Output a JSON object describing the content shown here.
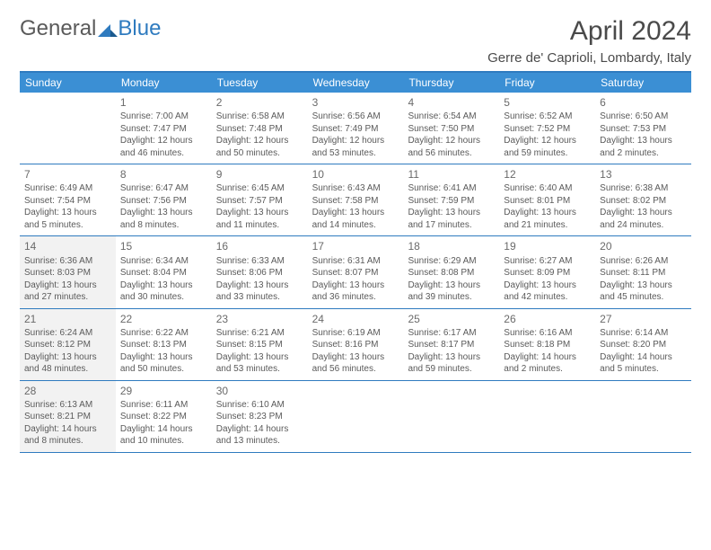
{
  "logo": {
    "general": "General",
    "blue": "Blue"
  },
  "header": {
    "month_title": "April 2024",
    "location": "Gerre de' Caprioli, Lombardy, Italy"
  },
  "colors": {
    "header_bar": "#3b8fd4",
    "border": "#2f7bbf",
    "shaded_bg": "#f2f2f2",
    "text": "#5a5a5a"
  },
  "days_of_week": [
    "Sunday",
    "Monday",
    "Tuesday",
    "Wednesday",
    "Thursday",
    "Friday",
    "Saturday"
  ],
  "shaded_dates": [
    14,
    21,
    28
  ],
  "weeks": [
    [
      {
        "date": null
      },
      {
        "date": 1,
        "sunrise": "Sunrise: 7:00 AM",
        "sunset": "Sunset: 7:47 PM",
        "daylight1": "Daylight: 12 hours",
        "daylight2": "and 46 minutes."
      },
      {
        "date": 2,
        "sunrise": "Sunrise: 6:58 AM",
        "sunset": "Sunset: 7:48 PM",
        "daylight1": "Daylight: 12 hours",
        "daylight2": "and 50 minutes."
      },
      {
        "date": 3,
        "sunrise": "Sunrise: 6:56 AM",
        "sunset": "Sunset: 7:49 PM",
        "daylight1": "Daylight: 12 hours",
        "daylight2": "and 53 minutes."
      },
      {
        "date": 4,
        "sunrise": "Sunrise: 6:54 AM",
        "sunset": "Sunset: 7:50 PM",
        "daylight1": "Daylight: 12 hours",
        "daylight2": "and 56 minutes."
      },
      {
        "date": 5,
        "sunrise": "Sunrise: 6:52 AM",
        "sunset": "Sunset: 7:52 PM",
        "daylight1": "Daylight: 12 hours",
        "daylight2": "and 59 minutes."
      },
      {
        "date": 6,
        "sunrise": "Sunrise: 6:50 AM",
        "sunset": "Sunset: 7:53 PM",
        "daylight1": "Daylight: 13 hours",
        "daylight2": "and 2 minutes."
      }
    ],
    [
      {
        "date": 7,
        "sunrise": "Sunrise: 6:49 AM",
        "sunset": "Sunset: 7:54 PM",
        "daylight1": "Daylight: 13 hours",
        "daylight2": "and 5 minutes."
      },
      {
        "date": 8,
        "sunrise": "Sunrise: 6:47 AM",
        "sunset": "Sunset: 7:56 PM",
        "daylight1": "Daylight: 13 hours",
        "daylight2": "and 8 minutes."
      },
      {
        "date": 9,
        "sunrise": "Sunrise: 6:45 AM",
        "sunset": "Sunset: 7:57 PM",
        "daylight1": "Daylight: 13 hours",
        "daylight2": "and 11 minutes."
      },
      {
        "date": 10,
        "sunrise": "Sunrise: 6:43 AM",
        "sunset": "Sunset: 7:58 PM",
        "daylight1": "Daylight: 13 hours",
        "daylight2": "and 14 minutes."
      },
      {
        "date": 11,
        "sunrise": "Sunrise: 6:41 AM",
        "sunset": "Sunset: 7:59 PM",
        "daylight1": "Daylight: 13 hours",
        "daylight2": "and 17 minutes."
      },
      {
        "date": 12,
        "sunrise": "Sunrise: 6:40 AM",
        "sunset": "Sunset: 8:01 PM",
        "daylight1": "Daylight: 13 hours",
        "daylight2": "and 21 minutes."
      },
      {
        "date": 13,
        "sunrise": "Sunrise: 6:38 AM",
        "sunset": "Sunset: 8:02 PM",
        "daylight1": "Daylight: 13 hours",
        "daylight2": "and 24 minutes."
      }
    ],
    [
      {
        "date": 14,
        "sunrise": "Sunrise: 6:36 AM",
        "sunset": "Sunset: 8:03 PM",
        "daylight1": "Daylight: 13 hours",
        "daylight2": "and 27 minutes."
      },
      {
        "date": 15,
        "sunrise": "Sunrise: 6:34 AM",
        "sunset": "Sunset: 8:04 PM",
        "daylight1": "Daylight: 13 hours",
        "daylight2": "and 30 minutes."
      },
      {
        "date": 16,
        "sunrise": "Sunrise: 6:33 AM",
        "sunset": "Sunset: 8:06 PM",
        "daylight1": "Daylight: 13 hours",
        "daylight2": "and 33 minutes."
      },
      {
        "date": 17,
        "sunrise": "Sunrise: 6:31 AM",
        "sunset": "Sunset: 8:07 PM",
        "daylight1": "Daylight: 13 hours",
        "daylight2": "and 36 minutes."
      },
      {
        "date": 18,
        "sunrise": "Sunrise: 6:29 AM",
        "sunset": "Sunset: 8:08 PM",
        "daylight1": "Daylight: 13 hours",
        "daylight2": "and 39 minutes."
      },
      {
        "date": 19,
        "sunrise": "Sunrise: 6:27 AM",
        "sunset": "Sunset: 8:09 PM",
        "daylight1": "Daylight: 13 hours",
        "daylight2": "and 42 minutes."
      },
      {
        "date": 20,
        "sunrise": "Sunrise: 6:26 AM",
        "sunset": "Sunset: 8:11 PM",
        "daylight1": "Daylight: 13 hours",
        "daylight2": "and 45 minutes."
      }
    ],
    [
      {
        "date": 21,
        "sunrise": "Sunrise: 6:24 AM",
        "sunset": "Sunset: 8:12 PM",
        "daylight1": "Daylight: 13 hours",
        "daylight2": "and 48 minutes."
      },
      {
        "date": 22,
        "sunrise": "Sunrise: 6:22 AM",
        "sunset": "Sunset: 8:13 PM",
        "daylight1": "Daylight: 13 hours",
        "daylight2": "and 50 minutes."
      },
      {
        "date": 23,
        "sunrise": "Sunrise: 6:21 AM",
        "sunset": "Sunset: 8:15 PM",
        "daylight1": "Daylight: 13 hours",
        "daylight2": "and 53 minutes."
      },
      {
        "date": 24,
        "sunrise": "Sunrise: 6:19 AM",
        "sunset": "Sunset: 8:16 PM",
        "daylight1": "Daylight: 13 hours",
        "daylight2": "and 56 minutes."
      },
      {
        "date": 25,
        "sunrise": "Sunrise: 6:17 AM",
        "sunset": "Sunset: 8:17 PM",
        "daylight1": "Daylight: 13 hours",
        "daylight2": "and 59 minutes."
      },
      {
        "date": 26,
        "sunrise": "Sunrise: 6:16 AM",
        "sunset": "Sunset: 8:18 PM",
        "daylight1": "Daylight: 14 hours",
        "daylight2": "and 2 minutes."
      },
      {
        "date": 27,
        "sunrise": "Sunrise: 6:14 AM",
        "sunset": "Sunset: 8:20 PM",
        "daylight1": "Daylight: 14 hours",
        "daylight2": "and 5 minutes."
      }
    ],
    [
      {
        "date": 28,
        "sunrise": "Sunrise: 6:13 AM",
        "sunset": "Sunset: 8:21 PM",
        "daylight1": "Daylight: 14 hours",
        "daylight2": "and 8 minutes."
      },
      {
        "date": 29,
        "sunrise": "Sunrise: 6:11 AM",
        "sunset": "Sunset: 8:22 PM",
        "daylight1": "Daylight: 14 hours",
        "daylight2": "and 10 minutes."
      },
      {
        "date": 30,
        "sunrise": "Sunrise: 6:10 AM",
        "sunset": "Sunset: 8:23 PM",
        "daylight1": "Daylight: 14 hours",
        "daylight2": "and 13 minutes."
      },
      {
        "date": null
      },
      {
        "date": null
      },
      {
        "date": null
      },
      {
        "date": null
      }
    ]
  ]
}
